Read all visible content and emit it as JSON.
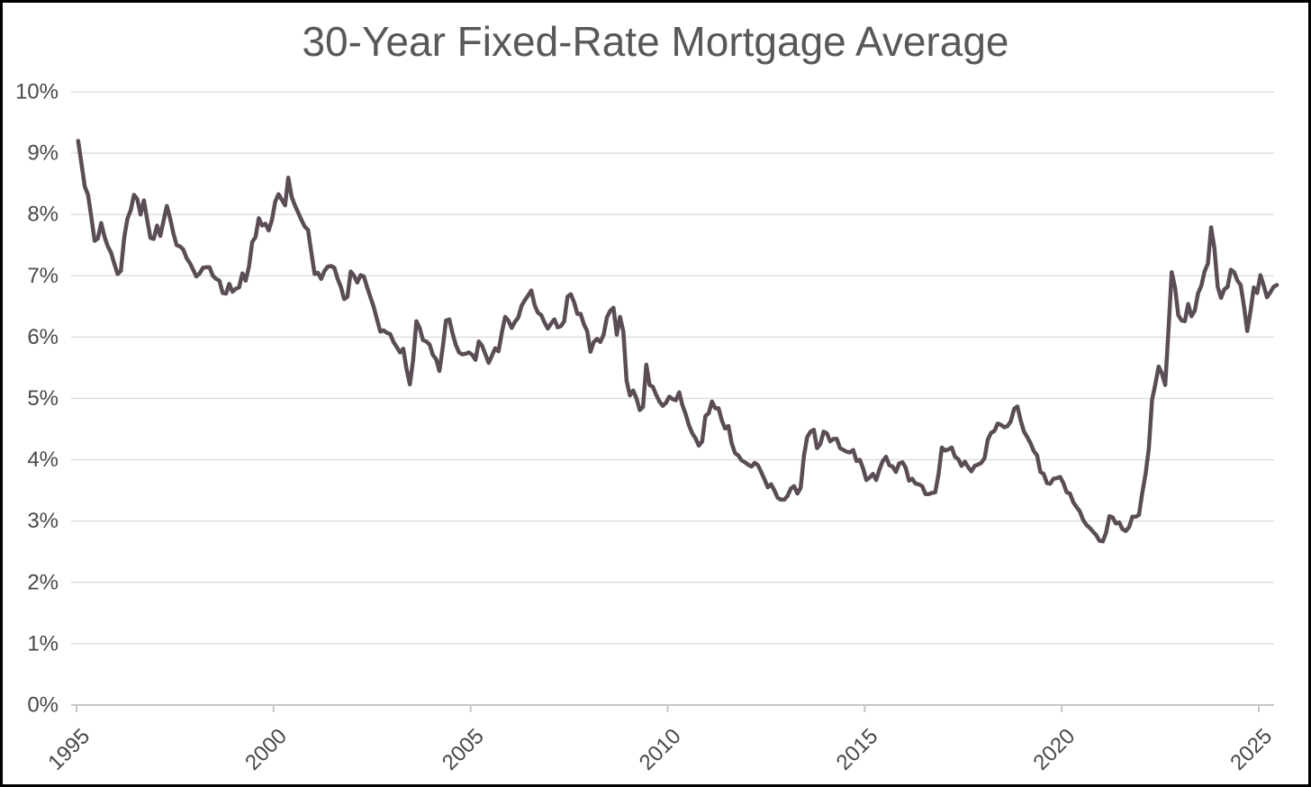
{
  "title": "30-Year Fixed-Rate Mortgage Average",
  "colors": {
    "line": "#5b4d55",
    "grid": "#d9d9d9",
    "axis": "#c6c6c8",
    "tick_label": "#48484a",
    "title": "#58585a",
    "background": "#ffffff",
    "border": "#000000"
  },
  "chart_data": {
    "type": "line",
    "title": "30-Year Fixed-Rate Mortgage Average",
    "xlabel": "",
    "ylabel": "",
    "grid": "horizontal",
    "legend": "none",
    "x_axis": {
      "ticks": [
        1995,
        2000,
        2005,
        2010,
        2015,
        2020,
        2025
      ],
      "tick_labels": [
        "1995",
        "2000",
        "2005",
        "2010",
        "2015",
        "2020",
        "2025"
      ],
      "range": [
        1995,
        2025.5
      ],
      "tick_label_rotation_deg": -45
    },
    "y_axis": {
      "ticks": [
        0,
        1,
        2,
        3,
        4,
        5,
        6,
        7,
        8,
        9,
        10
      ],
      "tick_labels": [
        "0%",
        "1%",
        "2%",
        "3%",
        "4%",
        "5%",
        "6%",
        "7%",
        "8%",
        "9%",
        "10%"
      ],
      "range": [
        0,
        10
      ],
      "unit": "percent"
    },
    "series": [
      {
        "name": "30-Year Fixed-Rate Mortgage Average",
        "frequency": "monthly",
        "x_start_year": 1995.0417,
        "x_step_years": 0.0833333,
        "values": [
          9.2,
          8.83,
          8.46,
          8.32,
          7.96,
          7.57,
          7.61,
          7.86,
          7.64,
          7.48,
          7.38,
          7.2,
          7.03,
          7.08,
          7.62,
          7.93,
          8.07,
          8.32,
          8.25,
          8.0,
          8.23,
          7.92,
          7.62,
          7.6,
          7.82,
          7.65,
          7.9,
          8.14,
          7.94,
          7.69,
          7.5,
          7.48,
          7.43,
          7.29,
          7.21,
          7.1,
          6.99,
          7.04,
          7.13,
          7.14,
          7.14,
          7.0,
          6.95,
          6.92,
          6.72,
          6.71,
          6.87,
          6.74,
          6.79,
          6.81,
          7.04,
          6.92,
          7.15,
          7.55,
          7.63,
          7.94,
          7.82,
          7.85,
          7.74,
          7.91,
          8.21,
          8.33,
          8.24,
          8.15,
          8.6,
          8.29,
          8.15,
          8.03,
          7.91,
          7.8,
          7.75,
          7.38,
          7.03,
          7.05,
          6.95,
          7.08,
          7.15,
          7.16,
          7.13,
          6.95,
          6.82,
          6.62,
          6.66,
          7.07,
          7.0,
          6.89,
          7.01,
          6.99,
          6.81,
          6.65,
          6.49,
          6.29,
          6.09,
          6.11,
          6.07,
          6.05,
          5.92,
          5.84,
          5.75,
          5.81,
          5.48,
          5.23,
          5.63,
          6.26,
          6.15,
          5.95,
          5.93,
          5.88,
          5.71,
          5.64,
          5.45,
          5.83,
          6.27,
          6.29,
          6.06,
          5.87,
          5.75,
          5.72,
          5.73,
          5.75,
          5.71,
          5.63,
          5.93,
          5.86,
          5.72,
          5.58,
          5.7,
          5.82,
          5.77,
          6.07,
          6.33,
          6.27,
          6.15,
          6.25,
          6.32,
          6.51,
          6.6,
          6.68,
          6.76,
          6.52,
          6.4,
          6.36,
          6.24,
          6.14,
          6.22,
          6.29,
          6.16,
          6.18,
          6.26,
          6.66,
          6.7,
          6.57,
          6.38,
          6.38,
          6.21,
          6.1,
          5.76,
          5.92,
          5.97,
          5.92,
          6.04,
          6.32,
          6.43,
          6.48,
          6.04,
          6.33,
          6.09,
          5.29,
          5.05,
          5.13,
          5.0,
          4.81,
          4.86,
          5.55,
          5.22,
          5.19,
          5.06,
          4.95,
          4.88,
          4.93,
          5.03,
          4.99,
          4.97,
          5.1,
          4.89,
          4.74,
          4.56,
          4.43,
          4.35,
          4.23,
          4.3,
          4.71,
          4.76,
          4.95,
          4.84,
          4.84,
          4.64,
          4.51,
          4.55,
          4.27,
          4.11,
          4.07,
          3.99,
          3.96,
          3.92,
          3.89,
          3.95,
          3.91,
          3.8,
          3.68,
          3.55,
          3.6,
          3.5,
          3.38,
          3.35,
          3.35,
          3.41,
          3.53,
          3.57,
          3.45,
          3.54,
          4.07,
          4.37,
          4.46,
          4.49,
          4.19,
          4.26,
          4.46,
          4.43,
          4.3,
          4.34,
          4.34,
          4.19,
          4.16,
          4.13,
          4.12,
          4.16,
          3.98,
          4.0,
          3.86,
          3.67,
          3.71,
          3.77,
          3.67,
          3.84,
          3.98,
          4.05,
          3.91,
          3.89,
          3.8,
          3.94,
          3.96,
          3.87,
          3.66,
          3.69,
          3.61,
          3.6,
          3.57,
          3.44,
          3.44,
          3.46,
          3.47,
          3.77,
          4.2,
          4.15,
          4.17,
          4.2,
          4.05,
          4.01,
          3.9,
          3.97,
          3.88,
          3.81,
          3.9,
          3.92,
          3.95,
          4.03,
          4.33,
          4.44,
          4.47,
          4.59,
          4.57,
          4.53,
          4.55,
          4.63,
          4.83,
          4.87,
          4.64,
          4.46,
          4.37,
          4.27,
          4.14,
          4.07,
          3.8,
          3.77,
          3.62,
          3.61,
          3.69,
          3.7,
          3.72,
          3.62,
          3.47,
          3.45,
          3.31,
          3.23,
          3.16,
          3.02,
          2.94,
          2.89,
          2.83,
          2.77,
          2.68,
          2.67,
          2.81,
          3.08,
          3.06,
          2.96,
          2.98,
          2.87,
          2.84,
          2.9,
          3.07,
          3.07,
          3.1,
          3.45,
          3.76,
          4.17,
          4.98,
          5.23,
          5.52,
          5.41,
          5.22,
          6.11,
          7.06,
          6.81,
          6.36,
          6.27,
          6.26,
          6.54,
          6.34,
          6.43,
          6.71,
          6.84,
          7.07,
          7.2,
          7.79,
          7.44,
          6.82,
          6.64,
          6.78,
          6.82,
          7.1,
          7.06,
          6.92,
          6.85,
          6.5,
          6.1,
          6.43,
          6.81,
          6.72,
          7.01,
          6.84,
          6.65,
          6.73,
          6.82,
          6.85
        ]
      }
    ]
  }
}
